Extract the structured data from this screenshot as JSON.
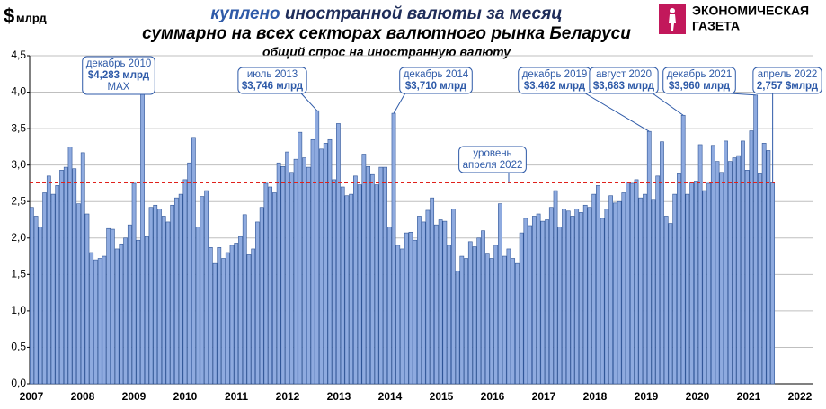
{
  "chart_data": {
    "type": "bar",
    "title_highlight": "куплено",
    "title": "иностранной валюты за месяц",
    "title_line2": "суммарно на всех секторах валютного рынка Беларуси",
    "subtitle": "общий спрос на иностранную валюту",
    "logo": [
      "ЭКОНОМИЧЕСКАЯ",
      "ГАЗЕТА"
    ],
    "y_label": "$",
    "y_unit": "млрд",
    "color": "#8eaadf",
    "edge_color": "#2f5597",
    "grid": true,
    "ylim": [
      0,
      4.5
    ],
    "yticks": [
      {
        "value": 0,
        "label": "0,0"
      },
      {
        "value": 0.5,
        "label": "0,5"
      },
      {
        "value": 1,
        "label": "1,0"
      },
      {
        "value": 1.5,
        "label": "1,5"
      },
      {
        "value": 2,
        "label": "2,0"
      },
      {
        "value": 2.5,
        "label": "2,5"
      },
      {
        "value": 3,
        "label": "3,0"
      },
      {
        "value": 3.5,
        "label": "3,5"
      },
      {
        "value": 4,
        "label": "4,0"
      },
      {
        "value": 4.5,
        "label": "4,5"
      }
    ],
    "x_labels": [
      "2007",
      "2008",
      "2009",
      "2010",
      "2011",
      "2012",
      "2013",
      "2014",
      "2015",
      "2016",
      "2017",
      "2018",
      "2019",
      "2020",
      "2021",
      "2022"
    ],
    "values": [
      2.42,
      2.3,
      2.15,
      2.62,
      2.85,
      2.6,
      2.72,
      2.93,
      2.97,
      3.25,
      2.95,
      2.47,
      3.17,
      2.33,
      1.8,
      1.7,
      1.72,
      1.75,
      2.13,
      2.12,
      1.85,
      1.92,
      2.0,
      2.18,
      2.75,
      1.97,
      4.283,
      2.02,
      2.42,
      2.45,
      2.4,
      2.3,
      2.22,
      2.45,
      2.55,
      2.6,
      2.8,
      3.03,
      3.38,
      2.15,
      2.57,
      2.65,
      1.87,
      1.65,
      1.87,
      1.72,
      1.8,
      1.9,
      1.93,
      2.02,
      2.32,
      1.77,
      1.85,
      2.22,
      2.42,
      2.75,
      2.7,
      2.62,
      3.03,
      2.98,
      3.18,
      2.9,
      3.08,
      3.45,
      3.1,
      2.97,
      3.35,
      3.746,
      3.22,
      3.3,
      3.35,
      2.8,
      3.57,
      2.7,
      2.58,
      2.6,
      2.85,
      2.73,
      3.15,
      2.98,
      2.87,
      2.73,
      2.97,
      2.97,
      2.15,
      3.71,
      1.9,
      1.85,
      2.07,
      2.08,
      1.97,
      2.3,
      2.22,
      2.38,
      2.55,
      2.18,
      2.25,
      2.23,
      1.9,
      2.4,
      1.55,
      1.75,
      1.72,
      1.95,
      1.88,
      2.0,
      2.1,
      1.78,
      1.72,
      1.9,
      2.47,
      1.75,
      1.85,
      1.72,
      1.65,
      2.07,
      2.27,
      2.17,
      2.3,
      2.33,
      2.23,
      2.25,
      2.42,
      2.65,
      2.15,
      2.4,
      2.37,
      2.3,
      2.4,
      2.35,
      2.45,
      2.42,
      2.6,
      2.72,
      2.27,
      2.4,
      2.58,
      2.48,
      2.5,
      2.62,
      2.77,
      2.75,
      2.8,
      2.55,
      2.6,
      3.462,
      2.53,
      2.85,
      3.32,
      2.3,
      2.2,
      2.6,
      2.88,
      3.683,
      2.6,
      2.77,
      2.78,
      3.28,
      2.65,
      2.75,
      3.27,
      3.05,
      2.9,
      3.33,
      3.05,
      3.1,
      3.13,
      3.33,
      2.93,
      3.47,
      3.96,
      2.88,
      3.3,
      3.2,
      2.757
    ],
    "annotation_titles": [
      null,
      null,
      null,
      null,
      null,
      null,
      null,
      null,
      null,
      null,
      null,
      null,
      null,
      null,
      null,
      null,
      null,
      null,
      null,
      null,
      null,
      null,
      null,
      null,
      null,
      null,
      "декабрь 2010",
      null,
      null,
      null,
      null,
      null,
      null,
      null,
      null,
      null,
      null,
      null,
      null,
      null,
      null,
      null,
      null,
      null,
      null,
      null,
      null,
      null,
      null,
      null,
      null,
      null,
      null,
      null,
      null,
      null,
      null,
      null,
      null,
      null,
      null,
      null,
      null,
      null,
      null,
      null,
      null,
      "июль 2013",
      null,
      null,
      null,
      null,
      null,
      null,
      null,
      null,
      null,
      null,
      null,
      null,
      null,
      null,
      null,
      null,
      null,
      "декабрь 2014",
      null,
      null,
      null,
      null,
      null,
      null,
      null,
      null,
      null,
      null,
      null,
      null,
      null,
      null,
      null,
      null,
      null,
      null,
      null,
      null,
      null,
      null,
      null,
      null,
      null,
      null,
      null,
      null,
      null,
      null,
      null,
      null,
      null,
      null,
      null,
      null,
      null,
      null,
      null,
      null,
      null,
      null,
      null,
      null,
      null,
      null,
      null,
      null,
      null,
      null,
      null,
      null,
      null,
      null,
      null,
      null,
      null,
      null,
      null,
      "декабрь 2019",
      null,
      null,
      null,
      null,
      null,
      null,
      null,
      "август 2020",
      null,
      null,
      null,
      null,
      null,
      null,
      null,
      null,
      null,
      null,
      null,
      null,
      null,
      null,
      null,
      null,
      "декабрь 2021",
      null,
      null,
      null,
      "апрель 2022"
    ],
    "value_labels": [
      null,
      null,
      null,
      null,
      null,
      null,
      null,
      null,
      null,
      null,
      null,
      null,
      null,
      null,
      null,
      null,
      null,
      null,
      null,
      null,
      null,
      null,
      null,
      null,
      null,
      null,
      "$4,283 млрд",
      null,
      null,
      null,
      null,
      null,
      null,
      null,
      null,
      null,
      null,
      null,
      null,
      null,
      null,
      null,
      null,
      null,
      null,
      null,
      null,
      null,
      null,
      null,
      null,
      null,
      null,
      null,
      null,
      null,
      null,
      null,
      null,
      null,
      null,
      null,
      null,
      null,
      null,
      null,
      null,
      "$3,746 млрд",
      null,
      null,
      null,
      null,
      null,
      null,
      null,
      null,
      null,
      null,
      null,
      null,
      null,
      null,
      null,
      null,
      null,
      "$3,710 млрд",
      null,
      null,
      null,
      null,
      null,
      null,
      null,
      null,
      null,
      null,
      null,
      null,
      null,
      null,
      null,
      null,
      null,
      null,
      null,
      null,
      null,
      null,
      null,
      null,
      null,
      null,
      null,
      null,
      null,
      null,
      null,
      null,
      null,
      null,
      null,
      null,
      null,
      null,
      null,
      null,
      null,
      null,
      null,
      null,
      null,
      null,
      null,
      null,
      null,
      null,
      null,
      null,
      null,
      null,
      null,
      null,
      null,
      null,
      null,
      "$3,462 млрд",
      null,
      null,
      null,
      null,
      null,
      null,
      null,
      "$3,683 млрд",
      null,
      null,
      null,
      null,
      null,
      null,
      null,
      null,
      null,
      null,
      null,
      null,
      null,
      null,
      null,
      null,
      "$3,960 млрд",
      null,
      null,
      null,
      "2,757  $млрд"
    ],
    "max_note": "MAX",
    "reference_color": "#e0211b",
    "reference_label": [
      "уровень",
      "апреля 2022"
    ]
  }
}
